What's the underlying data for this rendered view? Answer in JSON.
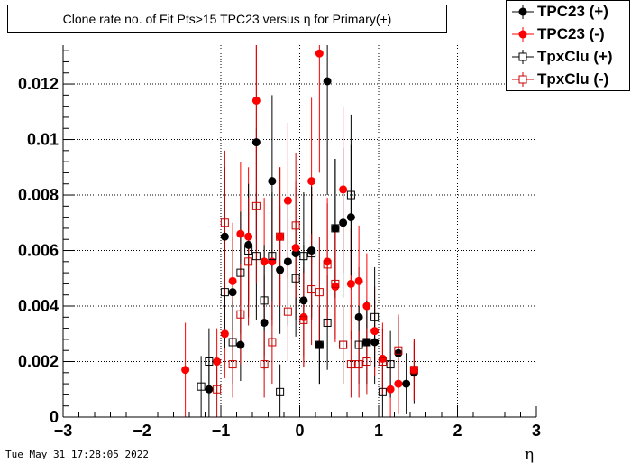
{
  "title": "Clone rate no. of Fit Pts>15 TPC23 versus η for Primary(+)",
  "datestamp": "Tue May 31 17:28:05 2022",
  "legend": [
    {
      "label": "TPC23 (+)",
      "color": "#000000",
      "marker": "filled-circle"
    },
    {
      "label": "TPC23 (-)",
      "color": "#ff0000",
      "marker": "filled-circle"
    },
    {
      "label": "TpxClu (+)",
      "color": "#000000",
      "marker": "open-square"
    },
    {
      "label": "TpxClu (-)",
      "color": "#cc0000",
      "marker": "open-square"
    }
  ],
  "chart_data": {
    "type": "scatter",
    "title": "Clone rate no. of Fit Pts>15 TPC23 versus η for Primary(+)",
    "xlabel": "η",
    "ylabel": "",
    "xlim": [
      -3,
      3
    ],
    "ylim": [
      0,
      0.0134
    ],
    "x_ticks": [
      -3,
      -2,
      -1,
      0,
      1,
      2,
      3
    ],
    "x_tick_labels": [
      "−3",
      "−2",
      "−1",
      "0",
      "1",
      "2",
      "3"
    ],
    "y_ticks": [
      0,
      0.002,
      0.004,
      0.006,
      0.008,
      0.01,
      0.012
    ],
    "y_tick_labels": [
      "0",
      "0.002",
      "0.004",
      "0.006",
      "0.008",
      "0.01",
      "0.012"
    ],
    "grid": true,
    "legend_position": "top-right",
    "series": [
      {
        "name": "TPC23 (+)",
        "color": "#000000",
        "marker": "filled-circle",
        "points": [
          {
            "x": -1.15,
            "y": 0.001,
            "err": 0.0011
          },
          {
            "x": -0.95,
            "y": 0.0065,
            "err": 0.0025
          },
          {
            "x": -0.85,
            "y": 0.0045,
            "err": 0.002
          },
          {
            "x": -0.75,
            "y": 0.0026,
            "err": 0.0013
          },
          {
            "x": -0.65,
            "y": 0.0062,
            "err": 0.002
          },
          {
            "x": -0.55,
            "y": 0.0099,
            "err": 0.0035
          },
          {
            "x": -0.45,
            "y": 0.0034,
            "err": 0.0017
          },
          {
            "x": -0.35,
            "y": 0.0085,
            "err": 0.0031
          },
          {
            "x": -0.25,
            "y": 0.0053,
            "err": 0.0023
          },
          {
            "x": -0.15,
            "y": 0.0056,
            "err": 0.0023
          },
          {
            "x": -0.05,
            "y": 0.0059,
            "err": 0.0024
          },
          {
            "x": 0.05,
            "y": 0.0042,
            "err": 0.002
          },
          {
            "x": 0.15,
            "y": 0.006,
            "err": 0.0024
          },
          {
            "x": 0.25,
            "y": 0.0026,
            "err": 0.0014
          },
          {
            "x": 0.35,
            "y": 0.0121,
            "err": 0.0041
          },
          {
            "x": 0.45,
            "y": 0.0068,
            "err": 0.0025
          },
          {
            "x": 0.55,
            "y": 0.007,
            "err": 0.0027
          },
          {
            "x": 0.65,
            "y": 0.0072,
            "err": 0.0026
          },
          {
            "x": 0.75,
            "y": 0.0036,
            "err": 0.0018
          },
          {
            "x": 0.85,
            "y": 0.0027,
            "err": 0.0015
          },
          {
            "x": 0.95,
            "y": 0.0027,
            "err": 0.0015
          },
          {
            "x": 1.25,
            "y": 0.0023,
            "err": 0.0013
          },
          {
            "x": 1.35,
            "y": 0.0012,
            "err": 0.0011
          },
          {
            "x": 1.45,
            "y": 0.0016,
            "err": 0.0011
          }
        ]
      },
      {
        "name": "TPC23 (-)",
        "color": "#ff0000",
        "marker": "filled-circle",
        "points": [
          {
            "x": -1.45,
            "y": 0.0017,
            "err": 0.0017
          },
          {
            "x": -1.05,
            "y": 0.002,
            "err": 0.0012
          },
          {
            "x": -0.95,
            "y": 0.003,
            "err": 0.0016
          },
          {
            "x": -0.85,
            "y": 0.0049,
            "err": 0.0021
          },
          {
            "x": -0.75,
            "y": 0.0066,
            "err": 0.0026
          },
          {
            "x": -0.65,
            "y": 0.0065,
            "err": 0.0025
          },
          {
            "x": -0.55,
            "y": 0.0114,
            "err": 0.004
          },
          {
            "x": -0.45,
            "y": 0.0056,
            "err": 0.0023
          },
          {
            "x": -0.35,
            "y": 0.0056,
            "err": 0.0023
          },
          {
            "x": -0.25,
            "y": 0.0065,
            "err": 0.0025
          },
          {
            "x": -0.15,
            "y": 0.0078,
            "err": 0.0028
          },
          {
            "x": -0.05,
            "y": 0.0061,
            "err": 0.0024
          },
          {
            "x": 0.05,
            "y": 0.0036,
            "err": 0.0018
          },
          {
            "x": 0.15,
            "y": 0.0085,
            "err": 0.003
          },
          {
            "x": 0.25,
            "y": 0.0131,
            "err": 0.0043
          },
          {
            "x": 0.35,
            "y": 0.0056,
            "err": 0.0023
          },
          {
            "x": 0.45,
            "y": 0.0047,
            "err": 0.002
          },
          {
            "x": 0.55,
            "y": 0.0082,
            "err": 0.003
          },
          {
            "x": 0.65,
            "y": 0.0048,
            "err": 0.002
          },
          {
            "x": 0.75,
            "y": 0.0049,
            "err": 0.002
          },
          {
            "x": 0.85,
            "y": 0.004,
            "err": 0.0019
          },
          {
            "x": 0.95,
            "y": 0.0031,
            "err": 0.0016
          },
          {
            "x": 1.05,
            "y": 0.0021,
            "err": 0.0013
          },
          {
            "x": 1.15,
            "y": 0.001,
            "err": 0.001
          },
          {
            "x": 1.25,
            "y": 0.0012,
            "err": 0.0011
          },
          {
            "x": 1.45,
            "y": 0.0017,
            "err": 0.0011
          }
        ]
      },
      {
        "name": "TpxClu (+)",
        "color": "#000000",
        "marker": "open-square",
        "points": [
          {
            "x": -1.25,
            "y": 0.0011,
            "err": 0.0011
          },
          {
            "x": -1.15,
            "y": 0.002,
            "err": 0.0012
          },
          {
            "x": -0.95,
            "y": 0.0045,
            "err": 0.002
          },
          {
            "x": -0.85,
            "y": 0.0027,
            "err": 0.0015
          },
          {
            "x": -0.75,
            "y": 0.0052,
            "err": 0.0022
          },
          {
            "x": -0.65,
            "y": 0.006,
            "err": 0.0024
          },
          {
            "x": -0.55,
            "y": 0.0058,
            "err": 0.0023
          },
          {
            "x": -0.45,
            "y": 0.0042,
            "err": 0.002
          },
          {
            "x": -0.35,
            "y": 0.0058,
            "err": 0.0023
          },
          {
            "x": -0.25,
            "y": 0.0009,
            "err": 0.001
          },
          {
            "x": -0.05,
            "y": 0.005,
            "err": 0.0021
          },
          {
            "x": 0.05,
            "y": 0.0058,
            "err": 0.0023
          },
          {
            "x": 0.15,
            "y": 0.0059,
            "err": 0.0024
          },
          {
            "x": 0.25,
            "y": 0.0026,
            "err": 0.0014
          },
          {
            "x": 0.35,
            "y": 0.0034,
            "err": 0.0017
          },
          {
            "x": 0.45,
            "y": 0.0068,
            "err": 0.0025
          },
          {
            "x": 0.55,
            "y": 0.0026,
            "err": 0.0014
          },
          {
            "x": 0.65,
            "y": 0.008,
            "err": 0.0029
          },
          {
            "x": 0.75,
            "y": 0.0026,
            "err": 0.0014
          },
          {
            "x": 0.85,
            "y": 0.0027,
            "err": 0.0015
          },
          {
            "x": 0.95,
            "y": 0.0036,
            "err": 0.0018
          },
          {
            "x": 1.05,
            "y": 0.0009,
            "err": 0.001
          },
          {
            "x": 1.15,
            "y": 0.0019,
            "err": 0.0012
          }
        ]
      },
      {
        "name": "TpxClu (-)",
        "color": "#cc0000",
        "marker": "open-square",
        "points": [
          {
            "x": -1.05,
            "y": 0.001,
            "err": 0.001
          },
          {
            "x": -0.95,
            "y": 0.007,
            "err": 0.0026
          },
          {
            "x": -0.85,
            "y": 0.0019,
            "err": 0.0012
          },
          {
            "x": -0.75,
            "y": 0.0037,
            "err": 0.0018
          },
          {
            "x": -0.65,
            "y": 0.0056,
            "err": 0.0023
          },
          {
            "x": -0.55,
            "y": 0.0076,
            "err": 0.0028
          },
          {
            "x": -0.45,
            "y": 0.0019,
            "err": 0.0012
          },
          {
            "x": -0.35,
            "y": 0.0027,
            "err": 0.0015
          },
          {
            "x": -0.25,
            "y": 0.0065,
            "err": 0.0025
          },
          {
            "x": -0.15,
            "y": 0.0038,
            "err": 0.0018
          },
          {
            "x": -0.05,
            "y": 0.0069,
            "err": 0.0026
          },
          {
            "x": 0.05,
            "y": 0.0035,
            "err": 0.0017
          },
          {
            "x": 0.15,
            "y": 0.0046,
            "err": 0.002
          },
          {
            "x": 0.25,
            "y": 0.0045,
            "err": 0.002
          },
          {
            "x": 0.35,
            "y": 0.0055,
            "err": 0.0022
          },
          {
            "x": 0.45,
            "y": 0.0048,
            "err": 0.002
          },
          {
            "x": 0.55,
            "y": 0.0026,
            "err": 0.0014
          },
          {
            "x": 0.65,
            "y": 0.0019,
            "err": 0.0012
          },
          {
            "x": 0.75,
            "y": 0.0019,
            "err": 0.0012
          },
          {
            "x": 0.85,
            "y": 0.002,
            "err": 0.0012
          },
          {
            "x": 1.05,
            "y": 0.002,
            "err": 0.0012
          },
          {
            "x": 1.25,
            "y": 0.0024,
            "err": 0.0013
          },
          {
            "x": 1.45,
            "y": 0.0017,
            "err": 0.0011
          }
        ]
      }
    ]
  }
}
